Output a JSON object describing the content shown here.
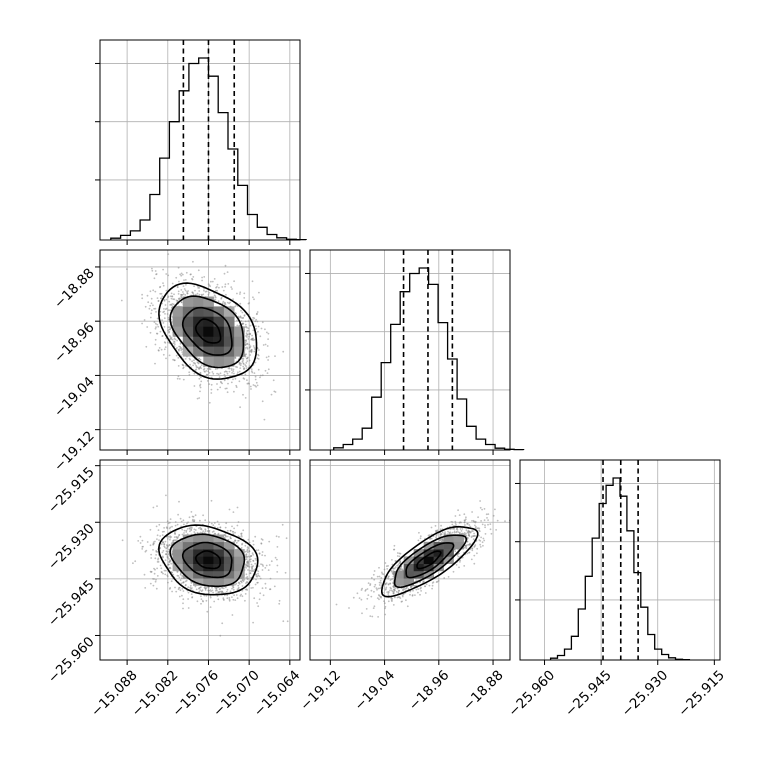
{
  "chart_data": {
    "type": "corner",
    "parameters": [
      {
        "name": "",
        "range": [
          -15.092,
          -15.0625
        ],
        "ticks": [
          -15.088,
          -15.082,
          -15.076,
          -15.07,
          -15.064
        ],
        "tick_labels": [
          "−15.088",
          "−15.082",
          "−15.076",
          "−15.070",
          "−15.064"
        ],
        "quantiles": [
          -15.0797,
          -15.076,
          -15.0722
        ],
        "mean": -15.076,
        "sd": 0.0036
      },
      {
        "name": "",
        "range": [
          -19.15,
          -18.855
        ],
        "ticks": [
          -19.12,
          -19.04,
          -18.96,
          -18.88
        ],
        "tick_labels": [
          "−19.12",
          "−19.04",
          "−18.96",
          "−18.88"
        ],
        "quantiles": [
          -19.012,
          -18.976,
          -18.94
        ],
        "mean": -18.975,
        "sd": 0.035
      },
      {
        "name": "",
        "range": [
          -25.9665,
          -25.9135
        ],
        "ticks": [
          -25.96,
          -25.945,
          -25.93,
          -25.915
        ],
        "tick_labels": [
          "−25.960",
          "−25.945",
          "−25.930",
          "−25.915"
        ],
        "quantiles": [
          -25.9445,
          -25.9398,
          -25.9352
        ],
        "mean": -25.94,
        "sd": 0.0046
      }
    ],
    "histograms": [
      {
        "bins": 20,
        "heights": [
          0.01,
          0.025,
          0.05,
          0.11,
          0.25,
          0.45,
          0.65,
          0.82,
          0.97,
          1.0,
          0.9,
          0.7,
          0.5,
          0.3,
          0.14,
          0.07,
          0.03,
          0.012,
          0.004,
          0.002
        ]
      },
      {
        "bins": 20,
        "heights": [
          0.012,
          0.03,
          0.06,
          0.12,
          0.29,
          0.48,
          0.69,
          0.87,
          0.97,
          1.0,
          0.91,
          0.7,
          0.5,
          0.28,
          0.13,
          0.06,
          0.03,
          0.01,
          0.004,
          0.002
        ]
      },
      {
        "bins": 20,
        "heights": [
          0.01,
          0.025,
          0.06,
          0.13,
          0.28,
          0.46,
          0.67,
          0.86,
          0.96,
          1.0,
          0.9,
          0.71,
          0.48,
          0.29,
          0.14,
          0.06,
          0.03,
          0.012,
          0.004,
          0.002
        ]
      }
    ],
    "correlations": [
      {
        "pair": [
          0,
          1
        ],
        "rho": -0.35
      },
      {
        "pair": [
          0,
          2
        ],
        "rho": -0.2
      },
      {
        "pair": [
          1,
          2
        ],
        "rho": 0.78
      }
    ],
    "contour_levels": [
      0.5,
      1.0,
      1.5,
      2.0
    ],
    "grid": true
  }
}
